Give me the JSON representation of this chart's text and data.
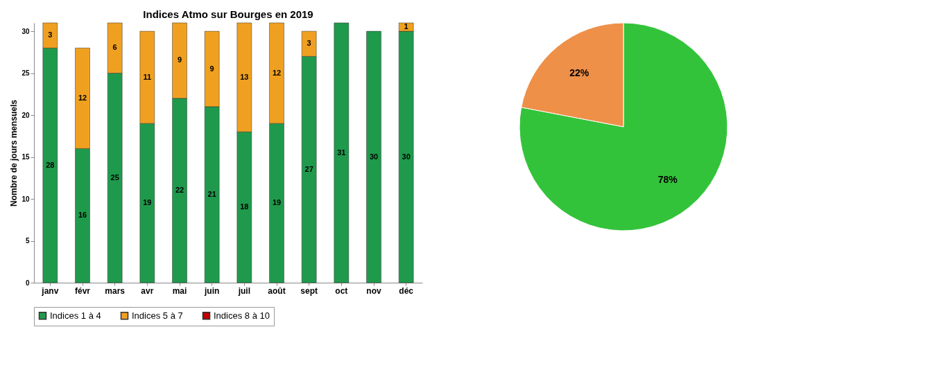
{
  "chart_data": [
    {
      "type": "bar",
      "title": "Indices Atmo sur Bourges en 2019",
      "ylabel": "Nombre de jours mensuels",
      "categories": [
        "janv",
        "févr",
        "mars",
        "avr",
        "mai",
        "juin",
        "juil",
        "août",
        "sept",
        "oct",
        "nov",
        "déc"
      ],
      "stacked": true,
      "ylim": [
        0,
        31
      ],
      "yticks": [
        0,
        5,
        10,
        15,
        20,
        25,
        30
      ],
      "legend": "bottom",
      "series": [
        {
          "name": "Indices 1 à 4",
          "color": "#1f9a4c",
          "values": [
            28,
            16,
            25,
            19,
            22,
            21,
            18,
            19,
            27,
            31,
            30,
            30
          ],
          "value_labels": [
            "28",
            "16",
            "25",
            "19",
            "22",
            "21",
            "18",
            "19",
            "27",
            "31",
            "30",
            "30"
          ]
        },
        {
          "name": "Indices 5 à 7",
          "color": "#f0a020",
          "values": [
            3,
            12,
            6,
            11,
            9,
            9,
            13,
            12,
            3,
            null,
            null,
            1
          ],
          "value_labels": [
            "3",
            "12",
            "6",
            "11",
            "9",
            "9",
            "13",
            "12",
            "3",
            null,
            null,
            "1"
          ]
        },
        {
          "name": "Indices 8 à 10",
          "color": "#c00000",
          "values": [
            null,
            null,
            null,
            null,
            null,
            null,
            null,
            null,
            null,
            null,
            null,
            null
          ]
        }
      ]
    },
    {
      "type": "pie",
      "categories": [
        null,
        null
      ],
      "values": [
        78,
        22
      ],
      "colors": [
        "#33c33a",
        "#ee9048"
      ],
      "value_labels": [
        "78%",
        "22%"
      ]
    }
  ]
}
